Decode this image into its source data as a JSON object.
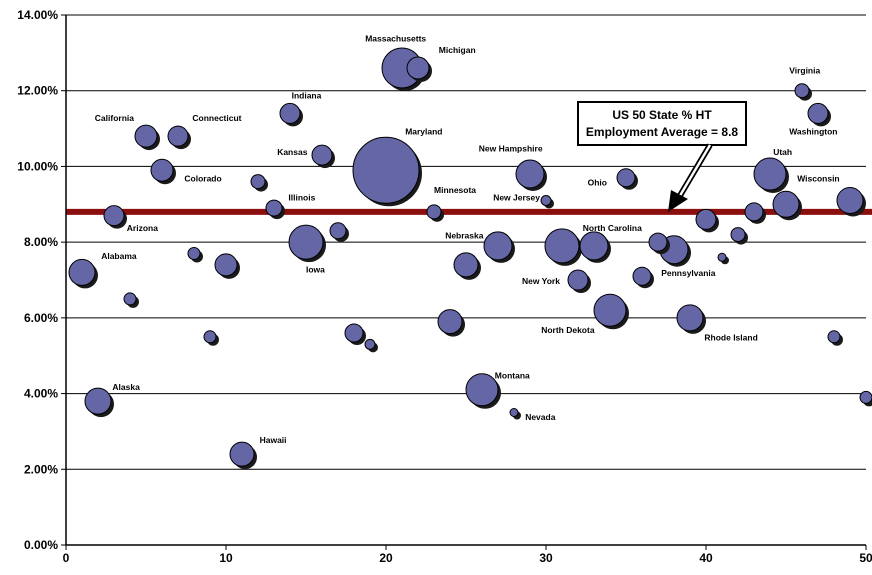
{
  "chart_data": {
    "type": "scatter",
    "variant": "bubble",
    "title": "",
    "xlabel": "",
    "ylabel": "",
    "xlim": [
      0,
      50
    ],
    "ylim": [
      0,
      14
    ],
    "x_ticks": [
      0,
      10,
      20,
      30,
      40,
      50
    ],
    "y_ticks": [
      0,
      2,
      4,
      6,
      8,
      10,
      12,
      14
    ],
    "y_tick_labels": [
      "0.00%",
      "2.00%",
      "4.00%",
      "6.00%",
      "8.00%",
      "10.00%",
      "12.00%",
      "14.00%"
    ],
    "grid": "horizontal",
    "bubble_color": "#6466a6",
    "reference_line": {
      "y": 8.8,
      "color": "#8b0f0f"
    },
    "callout": {
      "line1": "US 50 State % HT",
      "line2": "Employment Average = 8.8"
    },
    "points": [
      {
        "x": 1,
        "y": 7.2,
        "size": 13,
        "label": ""
      },
      {
        "x": 2,
        "y": 3.8,
        "size": 13,
        "label": ""
      },
      {
        "x": 3,
        "y": 8.7,
        "size": 10,
        "label": ""
      },
      {
        "x": 4,
        "y": 6.5,
        "size": 6,
        "label": ""
      },
      {
        "x": 5,
        "y": 10.8,
        "size": 11,
        "label": ""
      },
      {
        "x": 6,
        "y": 9.9,
        "size": 11,
        "label": ""
      },
      {
        "x": 7,
        "y": 10.8,
        "size": 10,
        "label": ""
      },
      {
        "x": 8,
        "y": 7.7,
        "size": 6,
        "label": ""
      },
      {
        "x": 9,
        "y": 5.5,
        "size": 6,
        "label": ""
      },
      {
        "x": 10,
        "y": 7.4,
        "size": 11,
        "label": ""
      },
      {
        "x": 11,
        "y": 2.4,
        "size": 12,
        "label": ""
      },
      {
        "x": 12,
        "y": 9.6,
        "size": 7,
        "label": ""
      },
      {
        "x": 13,
        "y": 8.9,
        "size": 8,
        "label": ""
      },
      {
        "x": 14,
        "y": 11.4,
        "size": 10,
        "label": ""
      },
      {
        "x": 15,
        "y": 8.0,
        "size": 17,
        "label": ""
      },
      {
        "x": 16,
        "y": 10.3,
        "size": 10,
        "label": ""
      },
      {
        "x": 17,
        "y": 8.3,
        "size": 8,
        "label": ""
      },
      {
        "x": 18,
        "y": 5.6,
        "size": 9,
        "label": ""
      },
      {
        "x": 19,
        "y": 5.3,
        "size": 5,
        "label": ""
      },
      {
        "x": 20,
        "y": 9.9,
        "size": 33,
        "label": ""
      },
      {
        "x": 21,
        "y": 12.6,
        "size": 20,
        "label": ""
      },
      {
        "x": 22,
        "y": 12.6,
        "size": 11,
        "label": ""
      },
      {
        "x": 23,
        "y": 8.8,
        "size": 7,
        "label": ""
      },
      {
        "x": 24,
        "y": 5.9,
        "size": 12,
        "label": ""
      },
      {
        "x": 25,
        "y": 7.4,
        "size": 12,
        "label": ""
      },
      {
        "x": 26,
        "y": 4.1,
        "size": 16,
        "label": ""
      },
      {
        "x": 27,
        "y": 7.9,
        "size": 14,
        "label": ""
      },
      {
        "x": 28,
        "y": 3.5,
        "size": 4,
        "label": ""
      },
      {
        "x": 29,
        "y": 9.8,
        "size": 14,
        "label": ""
      },
      {
        "x": 30,
        "y": 9.1,
        "size": 5,
        "label": ""
      },
      {
        "x": 31,
        "y": 7.9,
        "size": 17,
        "label": ""
      },
      {
        "x": 32,
        "y": 7.0,
        "size": 10,
        "label": ""
      },
      {
        "x": 33,
        "y": 7.9,
        "size": 14,
        "label": ""
      },
      {
        "x": 34,
        "y": 6.2,
        "size": 16,
        "label": ""
      },
      {
        "x": 35,
        "y": 9.7,
        "size": 9,
        "label": ""
      },
      {
        "x": 36,
        "y": 7.1,
        "size": 9,
        "label": ""
      },
      {
        "x": 37,
        "y": 8.0,
        "size": 9,
        "label": ""
      },
      {
        "x": 38,
        "y": 7.8,
        "size": 14,
        "label": ""
      },
      {
        "x": 39,
        "y": 6.0,
        "size": 13,
        "label": ""
      },
      {
        "x": 40,
        "y": 8.6,
        "size": 10,
        "label": ""
      },
      {
        "x": 41,
        "y": 7.6,
        "size": 4,
        "label": ""
      },
      {
        "x": 42,
        "y": 8.2,
        "size": 7,
        "label": ""
      },
      {
        "x": 43,
        "y": 8.8,
        "size": 9,
        "label": ""
      },
      {
        "x": 44,
        "y": 9.8,
        "size": 16,
        "label": ""
      },
      {
        "x": 45,
        "y": 9.0,
        "size": 13,
        "label": ""
      },
      {
        "x": 46,
        "y": 12.0,
        "size": 7,
        "label": ""
      },
      {
        "x": 47,
        "y": 11.4,
        "size": 10,
        "label": ""
      },
      {
        "x": 48,
        "y": 5.5,
        "size": 6,
        "label": ""
      },
      {
        "x": 49,
        "y": 9.1,
        "size": 13,
        "label": ""
      },
      {
        "x": 50,
        "y": 3.9,
        "size": 6,
        "label": ""
      }
    ],
    "annotations": [
      {
        "text": "Massachusetts",
        "x": 18.7,
        "y": 13.3
      },
      {
        "text": "Michigan",
        "x": 23.3,
        "y": 13.0
      },
      {
        "text": "Virginia",
        "x": 45.2,
        "y": 12.45
      },
      {
        "text": "Indiana",
        "x": 14.1,
        "y": 11.8
      },
      {
        "text": "California",
        "x": 1.8,
        "y": 11.2
      },
      {
        "text": "Connecticut",
        "x": 7.9,
        "y": 11.2
      },
      {
        "text": "Maryland",
        "x": 21.2,
        "y": 10.85
      },
      {
        "text": "Washington",
        "x": 45.2,
        "y": 10.85
      },
      {
        "text": "Kansas",
        "x": 13.2,
        "y": 10.3
      },
      {
        "text": "New Hampshire",
        "x": 25.8,
        "y": 10.4
      },
      {
        "text": "Utah",
        "x": 44.2,
        "y": 10.3
      },
      {
        "text": "Colorado",
        "x": 7.4,
        "y": 9.6
      },
      {
        "text": "Ohio",
        "x": 32.6,
        "y": 9.5
      },
      {
        "text": "Wisconsin",
        "x": 45.7,
        "y": 9.6
      },
      {
        "text": "Minnesota",
        "x": 23.0,
        "y": 9.3
      },
      {
        "text": "Illinois",
        "x": 13.9,
        "y": 9.1
      },
      {
        "text": "New Jersey",
        "x": 26.7,
        "y": 9.1
      },
      {
        "text": "Arizona",
        "x": 3.8,
        "y": 8.3
      },
      {
        "text": "Nebraska",
        "x": 23.7,
        "y": 8.1
      },
      {
        "text": "North Carolina",
        "x": 32.3,
        "y": 8.3
      },
      {
        "text": "Alabama",
        "x": 2.2,
        "y": 7.55
      },
      {
        "text": "Iowa",
        "x": 15.0,
        "y": 7.2
      },
      {
        "text": "Pennsylvania",
        "x": 37.2,
        "y": 7.1
      },
      {
        "text": "New York",
        "x": 28.5,
        "y": 6.9
      },
      {
        "text": "North Dekota",
        "x": 29.7,
        "y": 5.6
      },
      {
        "text": "Rhode Island",
        "x": 39.9,
        "y": 5.4
      },
      {
        "text": "Montana",
        "x": 26.8,
        "y": 4.4
      },
      {
        "text": "Alaska",
        "x": 2.9,
        "y": 4.1
      },
      {
        "text": "Nevada",
        "x": 28.7,
        "y": 3.3
      },
      {
        "text": "Hawaii",
        "x": 12.1,
        "y": 2.7
      }
    ]
  }
}
